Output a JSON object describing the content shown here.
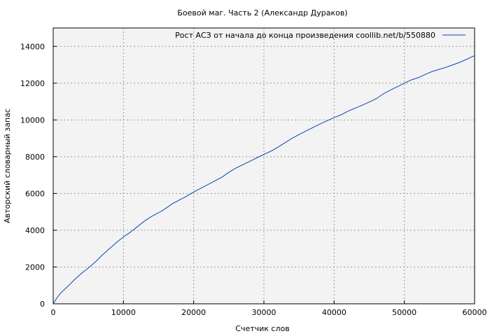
{
  "chart_data": {
    "type": "line",
    "title": "Боевой маг. Часть 2 (Александр Дураков)",
    "xlabel": "Счетчик слов",
    "ylabel": "Авторский словарный запас",
    "xlim": [
      0,
      60000
    ],
    "ylim": [
      0,
      15000
    ],
    "xticks": [
      0,
      10000,
      20000,
      30000,
      40000,
      50000,
      60000
    ],
    "yticks": [
      0,
      2000,
      4000,
      6000,
      8000,
      10000,
      12000,
      14000
    ],
    "grid": true,
    "legend_position": "top-right",
    "colors": {
      "line": "#0a47b0",
      "plot_bg": "#f3f3f3",
      "grid": "#999999"
    },
    "series": [
      {
        "name": "Рост АСЗ от начала до конца произведения coollib.net/b/550880",
        "x": [
          0,
          500,
          1000,
          2000,
          3000,
          4000,
          5000,
          6000,
          7000,
          8000,
          9000,
          10000,
          11000,
          12000,
          13000,
          14000,
          15000,
          16000,
          17000,
          18000,
          19000,
          20000,
          22000,
          24000,
          25000,
          26000,
          28000,
          30000,
          31000,
          32000,
          34000,
          36000,
          38000,
          40000,
          41000,
          42000,
          44000,
          46000,
          47000,
          48000,
          50000,
          51000,
          52000,
          53000,
          54000,
          56000,
          58000,
          60000
        ],
        "y": [
          0,
          300,
          560,
          920,
          1300,
          1650,
          1950,
          2280,
          2650,
          3000,
          3330,
          3640,
          3900,
          4200,
          4500,
          4750,
          4950,
          5180,
          5450,
          5650,
          5850,
          6080,
          6480,
          6880,
          7150,
          7380,
          7750,
          8130,
          8300,
          8520,
          9000,
          9400,
          9780,
          10130,
          10280,
          10480,
          10800,
          11150,
          11420,
          11620,
          12000,
          12180,
          12300,
          12480,
          12640,
          12870,
          13150,
          13500
        ]
      }
    ]
  }
}
